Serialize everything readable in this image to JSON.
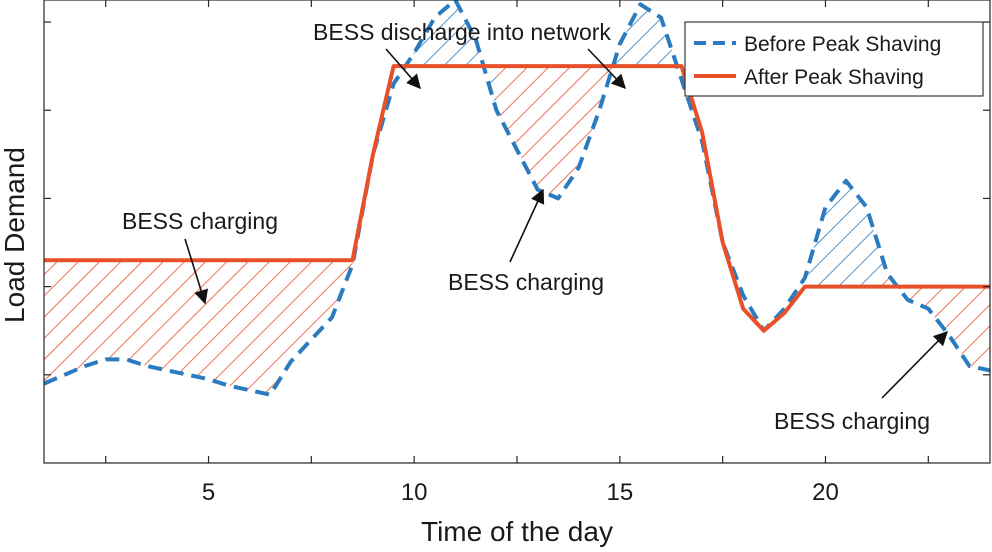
{
  "chart_data": {
    "type": "line",
    "title": "",
    "xlabel": "Time of the day",
    "ylabel": "Load Demand",
    "xlim": [
      1,
      24
    ],
    "ylim": [
      0,
      10.5
    ],
    "xticks": [
      5,
      10,
      15,
      20
    ],
    "yticks": [
      2,
      4,
      6,
      8,
      10
    ],
    "show_y_tick_labels": false,
    "grid": false,
    "legend_position": "top-right",
    "series": [
      {
        "name": "Before Peak Shaving",
        "style": "dashed",
        "color": "#2a7bbf",
        "x": [
          1,
          1.5,
          2,
          2.5,
          3,
          3.5,
          4,
          4.5,
          5,
          5.5,
          6,
          6.5,
          7,
          7.5,
          8,
          8.5,
          9,
          9.5,
          10,
          10.5,
          11,
          11.5,
          12,
          12.5,
          13,
          13.5,
          14,
          14.5,
          15,
          15.5,
          16,
          16.5,
          17,
          17.5,
          18,
          18.5,
          19,
          19.5,
          20,
          20.5,
          21,
          21.5,
          22,
          22.5,
          23,
          23.5,
          24
        ],
        "y": [
          1.8,
          2.0,
          2.2,
          2.35,
          2.35,
          2.2,
          2.1,
          2.0,
          1.9,
          1.75,
          1.65,
          1.55,
          2.3,
          2.8,
          3.3,
          4.5,
          7.0,
          8.6,
          9.3,
          10.1,
          10.5,
          9.6,
          8.0,
          7.1,
          6.2,
          6.0,
          6.7,
          8.0,
          9.5,
          10.4,
          10.1,
          8.7,
          7.3,
          5.0,
          3.8,
          3.0,
          3.5,
          4.2,
          5.8,
          6.4,
          5.8,
          4.3,
          3.7,
          3.5,
          2.9,
          2.2,
          2.1
        ],
        "fill_regions": [
          {
            "type": "discharge",
            "x_range": [
              9.8,
              12
            ],
            "color": "#2a7bbf"
          },
          {
            "type": "discharge",
            "x_range": [
              14.8,
              16.5
            ],
            "color": "#2a7bbf"
          },
          {
            "type": "discharge",
            "x_range": [
              19.5,
              21.4
            ],
            "color": "#2a7bbf"
          }
        ]
      },
      {
        "name": "After Peak Shaving",
        "style": "solid",
        "color": "#e8502a",
        "x": [
          1,
          8.5,
          9,
          9.5,
          12,
          14.5,
          16.5,
          17,
          17.5,
          18,
          18.5,
          19,
          19.5,
          24
        ],
        "y": [
          4.6,
          4.6,
          7.0,
          9.0,
          9.0,
          9.0,
          9.0,
          7.5,
          5.0,
          3.5,
          3.0,
          3.4,
          4.0,
          4.0
        ],
        "fill_regions": [
          {
            "type": "charging",
            "x_range": [
              1,
              8.5
            ],
            "color": "#e8502a"
          },
          {
            "type": "charging",
            "x_range": [
              12,
              14.8
            ],
            "color": "#e8502a"
          },
          {
            "type": "charging",
            "x_range": [
              21.4,
              24
            ],
            "color": "#e8502a"
          }
        ]
      }
    ],
    "annotations": [
      {
        "text": "BESS discharge into network"
      },
      {
        "text": "BESS charging"
      },
      {
        "text": "BESS charging"
      },
      {
        "text": "BESS charging"
      }
    ]
  }
}
